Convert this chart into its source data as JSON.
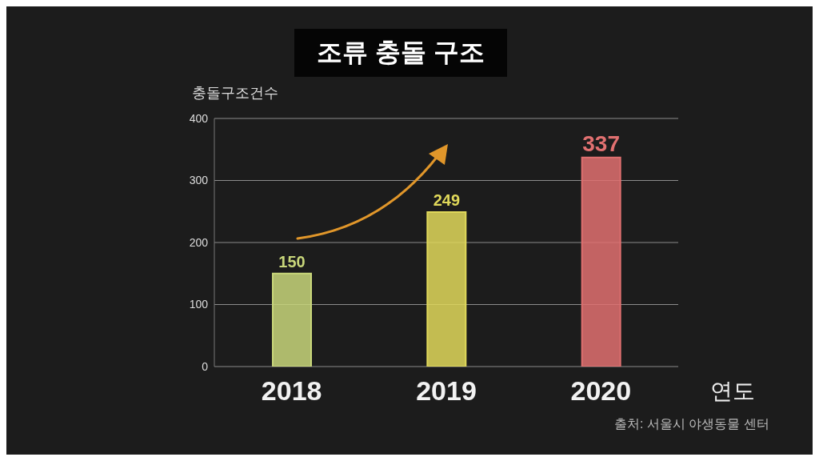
{
  "chart_data": {
    "type": "bar",
    "title": "조류 충돌 구조",
    "ylabel": "충돌구조건수",
    "xlabel": "연도",
    "categories": [
      "2018",
      "2019",
      "2020"
    ],
    "values": [
      150,
      249,
      337
    ],
    "colors": [
      "#c8d67a",
      "#e0d85a",
      "#e07070"
    ],
    "ylim": [
      0,
      400
    ],
    "yticks": [
      0,
      100,
      200,
      300,
      400
    ],
    "grid": "y",
    "data_labels": true,
    "annotations": [
      "출처: 서울시 야생동물 센터"
    ]
  }
}
